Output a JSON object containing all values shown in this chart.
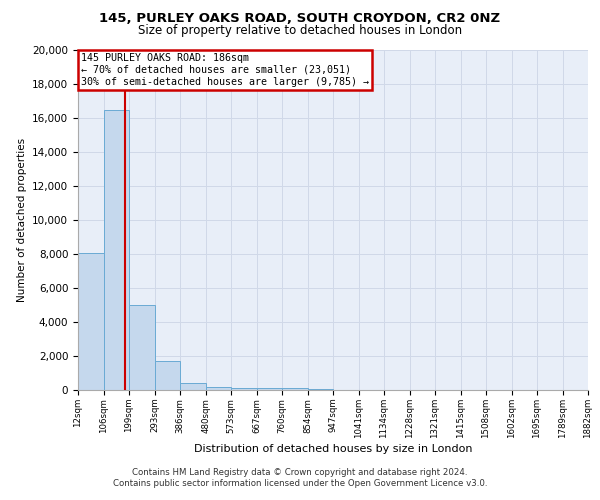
{
  "title_line1": "145, PURLEY OAKS ROAD, SOUTH CROYDON, CR2 0NZ",
  "title_line2": "Size of property relative to detached houses in London",
  "xlabel": "Distribution of detached houses by size in London",
  "ylabel": "Number of detached properties",
  "bar_edges": [
    12,
    106,
    199,
    293,
    386,
    480,
    573,
    667,
    760,
    854,
    947,
    1041,
    1134,
    1228,
    1321,
    1415,
    1508,
    1602,
    1695,
    1789,
    1882
  ],
  "bar_values": [
    8050,
    16500,
    5000,
    1700,
    400,
    200,
    130,
    110,
    100,
    30,
    10,
    5,
    3,
    2,
    1,
    1,
    0,
    0,
    0,
    0
  ],
  "bar_color": "#c5d8ed",
  "bar_edge_color": "#6aaad4",
  "property_sqm": 186,
  "annotation_title": "145 PURLEY OAKS ROAD: 186sqm",
  "annotation_line2": "← 70% of detached houses are smaller (23,051)",
  "annotation_line3": "30% of semi-detached houses are larger (9,785) →",
  "annotation_box_color": "#ffffff",
  "annotation_box_edge": "#cc0000",
  "property_line_color": "#cc0000",
  "ylim": [
    0,
    20000
  ],
  "yticks": [
    0,
    2000,
    4000,
    6000,
    8000,
    10000,
    12000,
    14000,
    16000,
    18000,
    20000
  ],
  "grid_color": "#d0d8e8",
  "bg_color": "#e8eef8",
  "footer_line1": "Contains HM Land Registry data © Crown copyright and database right 2024.",
  "footer_line2": "Contains public sector information licensed under the Open Government Licence v3.0."
}
